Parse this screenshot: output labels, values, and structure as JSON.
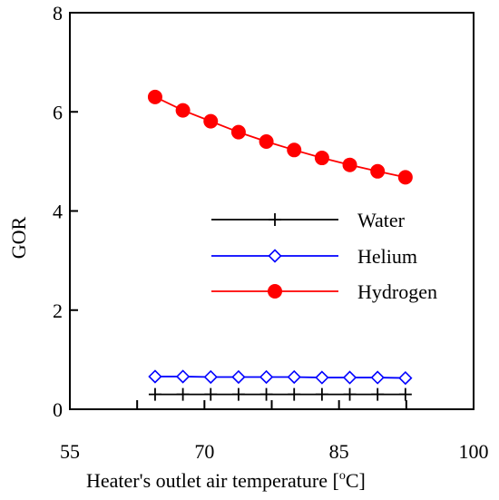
{
  "chart_data": {
    "type": "line",
    "title": "",
    "xlabel": "Heater's outlet air temperature [°C]",
    "xlabel_parts": {
      "main": "Heater's outlet air temperature [",
      "sup": "o",
      "tail": "C]"
    },
    "ylabel": "GOR",
    "xlim": [
      55,
      100
    ],
    "ylim": [
      0,
      8
    ],
    "xticks": [
      55,
      70,
      85,
      100
    ],
    "xticks_minor": [
      62.5,
      77.5,
      92.5
    ],
    "yticks": [
      0,
      2,
      4,
      6,
      8
    ],
    "legend_position": "center-right",
    "grid": false,
    "x": [
      64.5,
      67.6,
      70.7,
      73.8,
      76.9,
      80.0,
      83.1,
      86.2,
      89.3,
      92.4
    ],
    "series": [
      {
        "name": "Water",
        "marker": "plus",
        "color": "#000000",
        "values": [
          0.3,
          0.3,
          0.3,
          0.3,
          0.3,
          0.3,
          0.3,
          0.3,
          0.3,
          0.3
        ]
      },
      {
        "name": "Helium",
        "marker": "diamond-open",
        "color": "#0000ff",
        "values": [
          0.66,
          0.66,
          0.65,
          0.65,
          0.65,
          0.65,
          0.64,
          0.64,
          0.64,
          0.63
        ]
      },
      {
        "name": "Hydrogen",
        "marker": "circle-filled",
        "color": "#ff0000",
        "values": [
          6.3,
          6.03,
          5.81,
          5.59,
          5.4,
          5.23,
          5.07,
          4.93,
          4.8,
          4.68
        ]
      }
    ]
  }
}
